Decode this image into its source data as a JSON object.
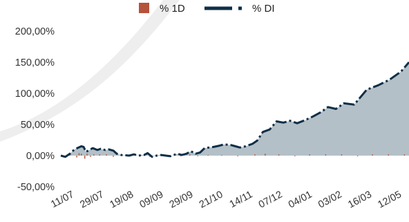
{
  "chart_data": {
    "type": "area",
    "title": "",
    "xlabel": "",
    "ylabel": "",
    "x_tick_labels": [
      "11/07",
      "29/07",
      "19/08",
      "09/09",
      "29/09",
      "21/10",
      "14/11",
      "07/12",
      "04/01",
      "03/02",
      "16/03",
      "12/05"
    ],
    "y_tick_labels": [
      "200,00%",
      "150,00%",
      "100,00%",
      "50,00%",
      "0,00%",
      "-50,00%"
    ],
    "y_ticks": [
      200,
      150,
      100,
      50,
      0,
      -50
    ],
    "ylim": [
      -50,
      200
    ],
    "grid": false,
    "legend": {
      "position": "top-center",
      "entries": [
        {
          "label": "% 1D",
          "color": "#b5533c",
          "marker": "square"
        },
        {
          "label": "% DI",
          "color": "#0e2f48",
          "marker": "dash-dot-line"
        }
      ]
    },
    "series": [
      {
        "name": "% DI",
        "style": "dash-dot line with filled area",
        "line_color": "#0e2f48",
        "fill_color": "#b4c0c7",
        "values": [
          {
            "x": "11/07",
            "y": 0
          },
          {
            "x": "15/07",
            "y": -2
          },
          {
            "x": "19/07",
            "y": 3
          },
          {
            "x": "23/07",
            "y": 10
          },
          {
            "x": "29/07",
            "y": 15
          },
          {
            "x": "31/07",
            "y": 14
          },
          {
            "x": "02/08",
            "y": 6
          },
          {
            "x": "05/08",
            "y": 9
          },
          {
            "x": "08/08",
            "y": 12
          },
          {
            "x": "12/08",
            "y": 9
          },
          {
            "x": "15/08",
            "y": 11
          },
          {
            "x": "19/08",
            "y": 9
          },
          {
            "x": "22/08",
            "y": 10
          },
          {
            "x": "26/08",
            "y": 8
          },
          {
            "x": "29/08",
            "y": 3
          },
          {
            "x": "02/09",
            "y": 1
          },
          {
            "x": "09/09",
            "y": 0
          },
          {
            "x": "13/09",
            "y": 2
          },
          {
            "x": "17/09",
            "y": 0
          },
          {
            "x": "22/09",
            "y": 1
          },
          {
            "x": "25/09",
            "y": 4
          },
          {
            "x": "29/09",
            "y": -2
          },
          {
            "x": "03/10",
            "y": 0
          },
          {
            "x": "07/10",
            "y": 1
          },
          {
            "x": "11/10",
            "y": 0
          },
          {
            "x": "15/10",
            "y": -1
          },
          {
            "x": "21/10",
            "y": 3
          },
          {
            "x": "25/10",
            "y": 1
          },
          {
            "x": "29/10",
            "y": 3
          },
          {
            "x": "02/11",
            "y": 7
          },
          {
            "x": "06/11",
            "y": 3
          },
          {
            "x": "10/11",
            "y": 5
          },
          {
            "x": "14/11",
            "y": 12
          },
          {
            "x": "18/11",
            "y": 13
          },
          {
            "x": "22/11",
            "y": 14
          },
          {
            "x": "27/11",
            "y": 16
          },
          {
            "x": "01/12",
            "y": 18
          },
          {
            "x": "07/12",
            "y": 17
          },
          {
            "x": "11/12",
            "y": 15
          },
          {
            "x": "15/12",
            "y": 13
          },
          {
            "x": "20/12",
            "y": 15
          },
          {
            "x": "26/12",
            "y": 19
          },
          {
            "x": "30/12",
            "y": 24
          },
          {
            "x": "04/01",
            "y": 38
          },
          {
            "x": "10/01",
            "y": 42
          },
          {
            "x": "16/01",
            "y": 55
          },
          {
            "x": "22/01",
            "y": 53
          },
          {
            "x": "28/01",
            "y": 56
          },
          {
            "x": "03/02",
            "y": 52
          },
          {
            "x": "10/02",
            "y": 57
          },
          {
            "x": "17/02",
            "y": 63
          },
          {
            "x": "24/02",
            "y": 70
          },
          {
            "x": "02/03",
            "y": 78
          },
          {
            "x": "09/03",
            "y": 75
          },
          {
            "x": "16/03",
            "y": 84
          },
          {
            "x": "25/03",
            "y": 82
          },
          {
            "x": "05/04",
            "y": 106
          },
          {
            "x": "15/04",
            "y": 113
          },
          {
            "x": "25/04",
            "y": 122
          },
          {
            "x": "05/05",
            "y": 135
          },
          {
            "x": "12/05",
            "y": 150
          }
        ]
      },
      {
        "name": "% 1D",
        "style": "thin bars",
        "color": "#b5533c",
        "values": [
          {
            "x": "19/07",
            "y": 2
          },
          {
            "x": "25/07",
            "y": -3
          },
          {
            "x": "27/07",
            "y": 4
          },
          {
            "x": "29/07",
            "y": 3
          },
          {
            "x": "01/08",
            "y": -5
          },
          {
            "x": "03/08",
            "y": 3
          },
          {
            "x": "06/08",
            "y": -2
          },
          {
            "x": "09/08",
            "y": 2
          },
          {
            "x": "14/08",
            "y": 2
          },
          {
            "x": "20/08",
            "y": 2
          },
          {
            "x": "26/08",
            "y": -2
          },
          {
            "x": "02/09",
            "y": 1
          },
          {
            "x": "11/09",
            "y": 1
          },
          {
            "x": "20/09",
            "y": 1
          },
          {
            "x": "27/09",
            "y": -2
          },
          {
            "x": "05/10",
            "y": 1
          },
          {
            "x": "14/10",
            "y": 1
          },
          {
            "x": "24/10",
            "y": -1
          },
          {
            "x": "01/11",
            "y": 2
          },
          {
            "x": "08/11",
            "y": -1
          },
          {
            "x": "17/11",
            "y": 1
          },
          {
            "x": "29/11",
            "y": 1
          },
          {
            "x": "13/12",
            "y": -1
          },
          {
            "x": "28/12",
            "y": 2
          },
          {
            "x": "06/01",
            "y": 3
          },
          {
            "x": "18/01",
            "y": 2
          },
          {
            "x": "01/02",
            "y": -1
          },
          {
            "x": "14/02",
            "y": 2
          },
          {
            "x": "28/02",
            "y": 2
          },
          {
            "x": "14/03",
            "y": 2
          },
          {
            "x": "28/03",
            "y": -1
          },
          {
            "x": "10/04",
            "y": 2
          },
          {
            "x": "24/04",
            "y": 2
          },
          {
            "x": "08/05",
            "y": 2
          }
        ]
      }
    ]
  }
}
